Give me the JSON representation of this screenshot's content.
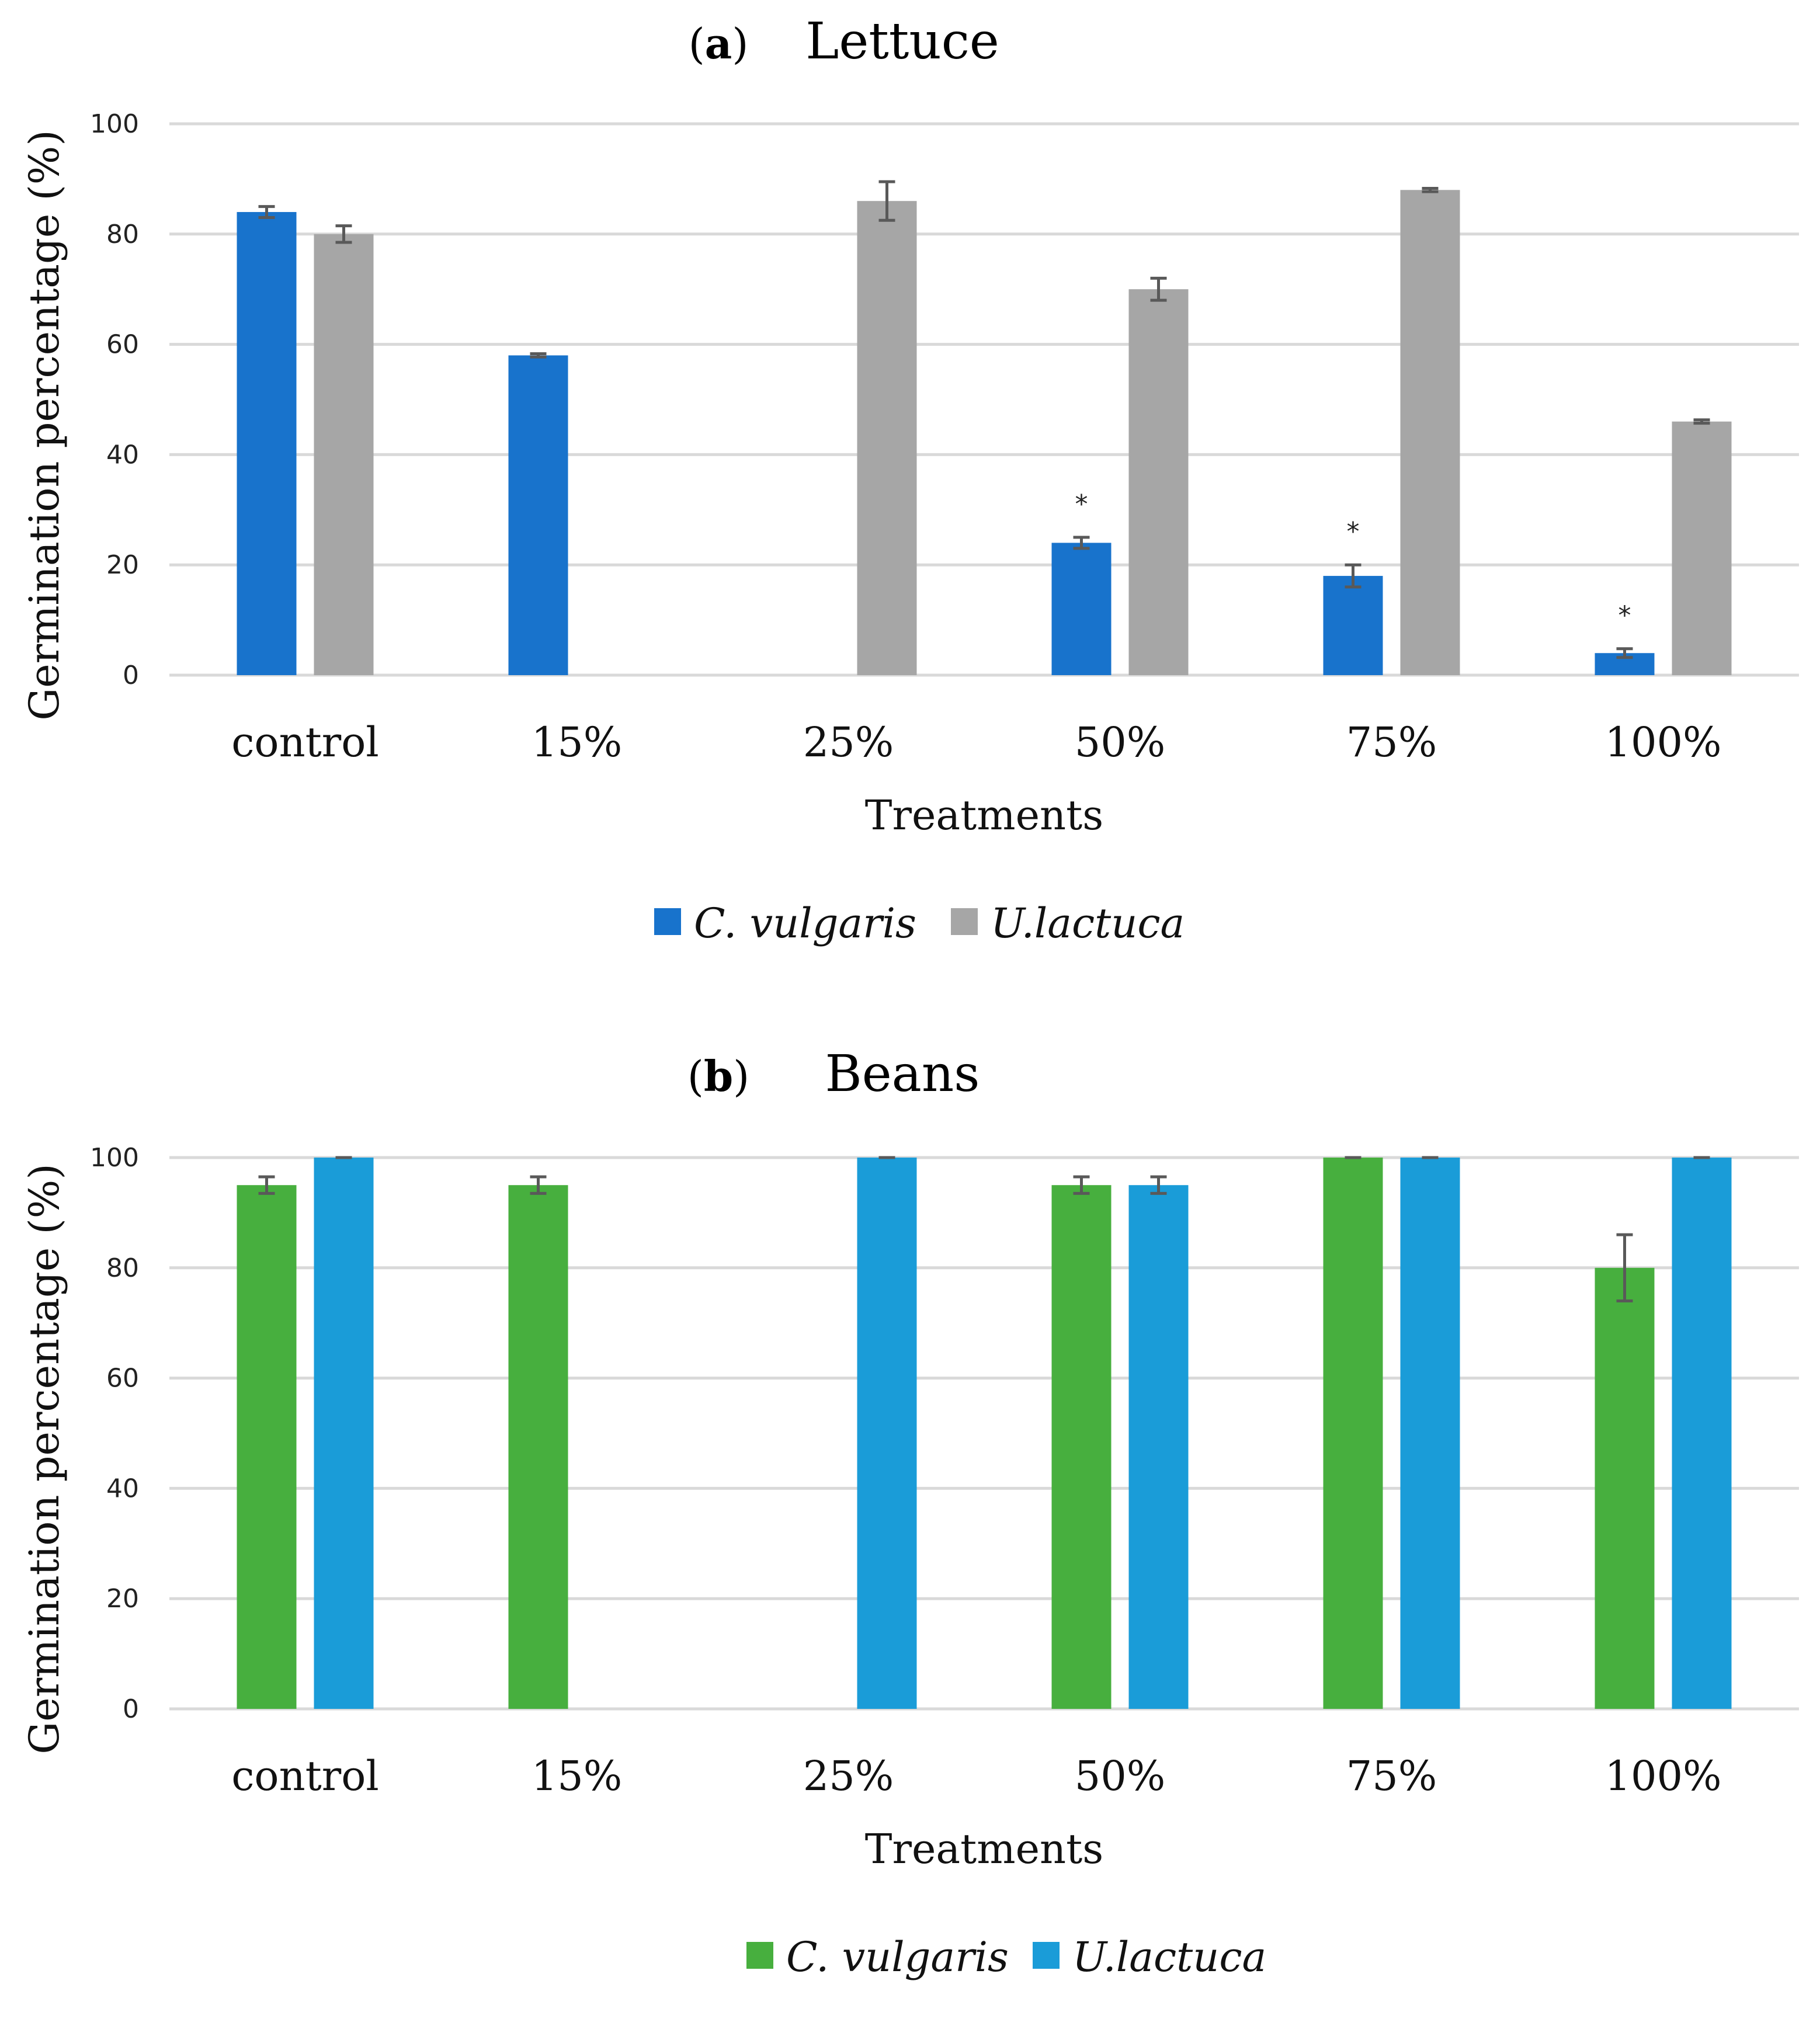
{
  "chart_data": [
    {
      "type": "bar",
      "panel_letter": "a",
      "title": "Lettuce",
      "xlabel": "Treatments",
      "ylabel": "Germination percentage (%)",
      "ylim": [
        0,
        100
      ],
      "yticks": [
        "0",
        "20",
        "40",
        "60",
        "80",
        "100"
      ],
      "grid": true,
      "legend": "bottom-center",
      "categories": [
        "control",
        "15%",
        "25%",
        "50%",
        "75%",
        "100%"
      ],
      "series": [
        {
          "name": "C. vulgaris",
          "color": "#1873CC",
          "values": [
            84,
            58,
            null,
            24,
            18,
            4
          ],
          "errors": [
            1,
            0.3,
            null,
            1,
            2,
            0.8
          ],
          "significance": [
            "",
            "",
            "",
            "*",
            "*",
            "*"
          ]
        },
        {
          "name": "U.lactuca",
          "color": "#A6A6A6",
          "values": [
            80,
            null,
            86,
            70,
            88,
            46
          ],
          "errors": [
            1.5,
            null,
            3.5,
            2,
            0.3,
            0.3
          ],
          "significance": [
            "",
            "",
            "",
            "",
            "",
            ""
          ]
        }
      ]
    },
    {
      "type": "bar",
      "panel_letter": "b",
      "title": "Beans",
      "xlabel": "Treatments",
      "ylabel": "Germination percentage (%)",
      "ylim": [
        0,
        100
      ],
      "yticks": [
        "0",
        "20",
        "40",
        "60",
        "80",
        "100"
      ],
      "grid": true,
      "legend": "bottom-center",
      "categories": [
        "control",
        "15%",
        "25%",
        "50%",
        "75%",
        "100%"
      ],
      "series": [
        {
          "name": "C. vulgaris",
          "color": "#47AF3E",
          "values": [
            95,
            95,
            null,
            95,
            100,
            80
          ],
          "errors": [
            1.5,
            1.5,
            null,
            1.5,
            0,
            6
          ],
          "significance": [
            "",
            "",
            "",
            "",
            "",
            ""
          ]
        },
        {
          "name": "U.lactuca",
          "color": "#1A9CD8",
          "values": [
            100,
            null,
            100,
            95,
            100,
            100
          ],
          "errors": [
            0,
            null,
            0,
            1.5,
            0,
            0
          ],
          "significance": [
            "",
            "",
            "",
            "",
            "",
            ""
          ]
        }
      ]
    }
  ]
}
